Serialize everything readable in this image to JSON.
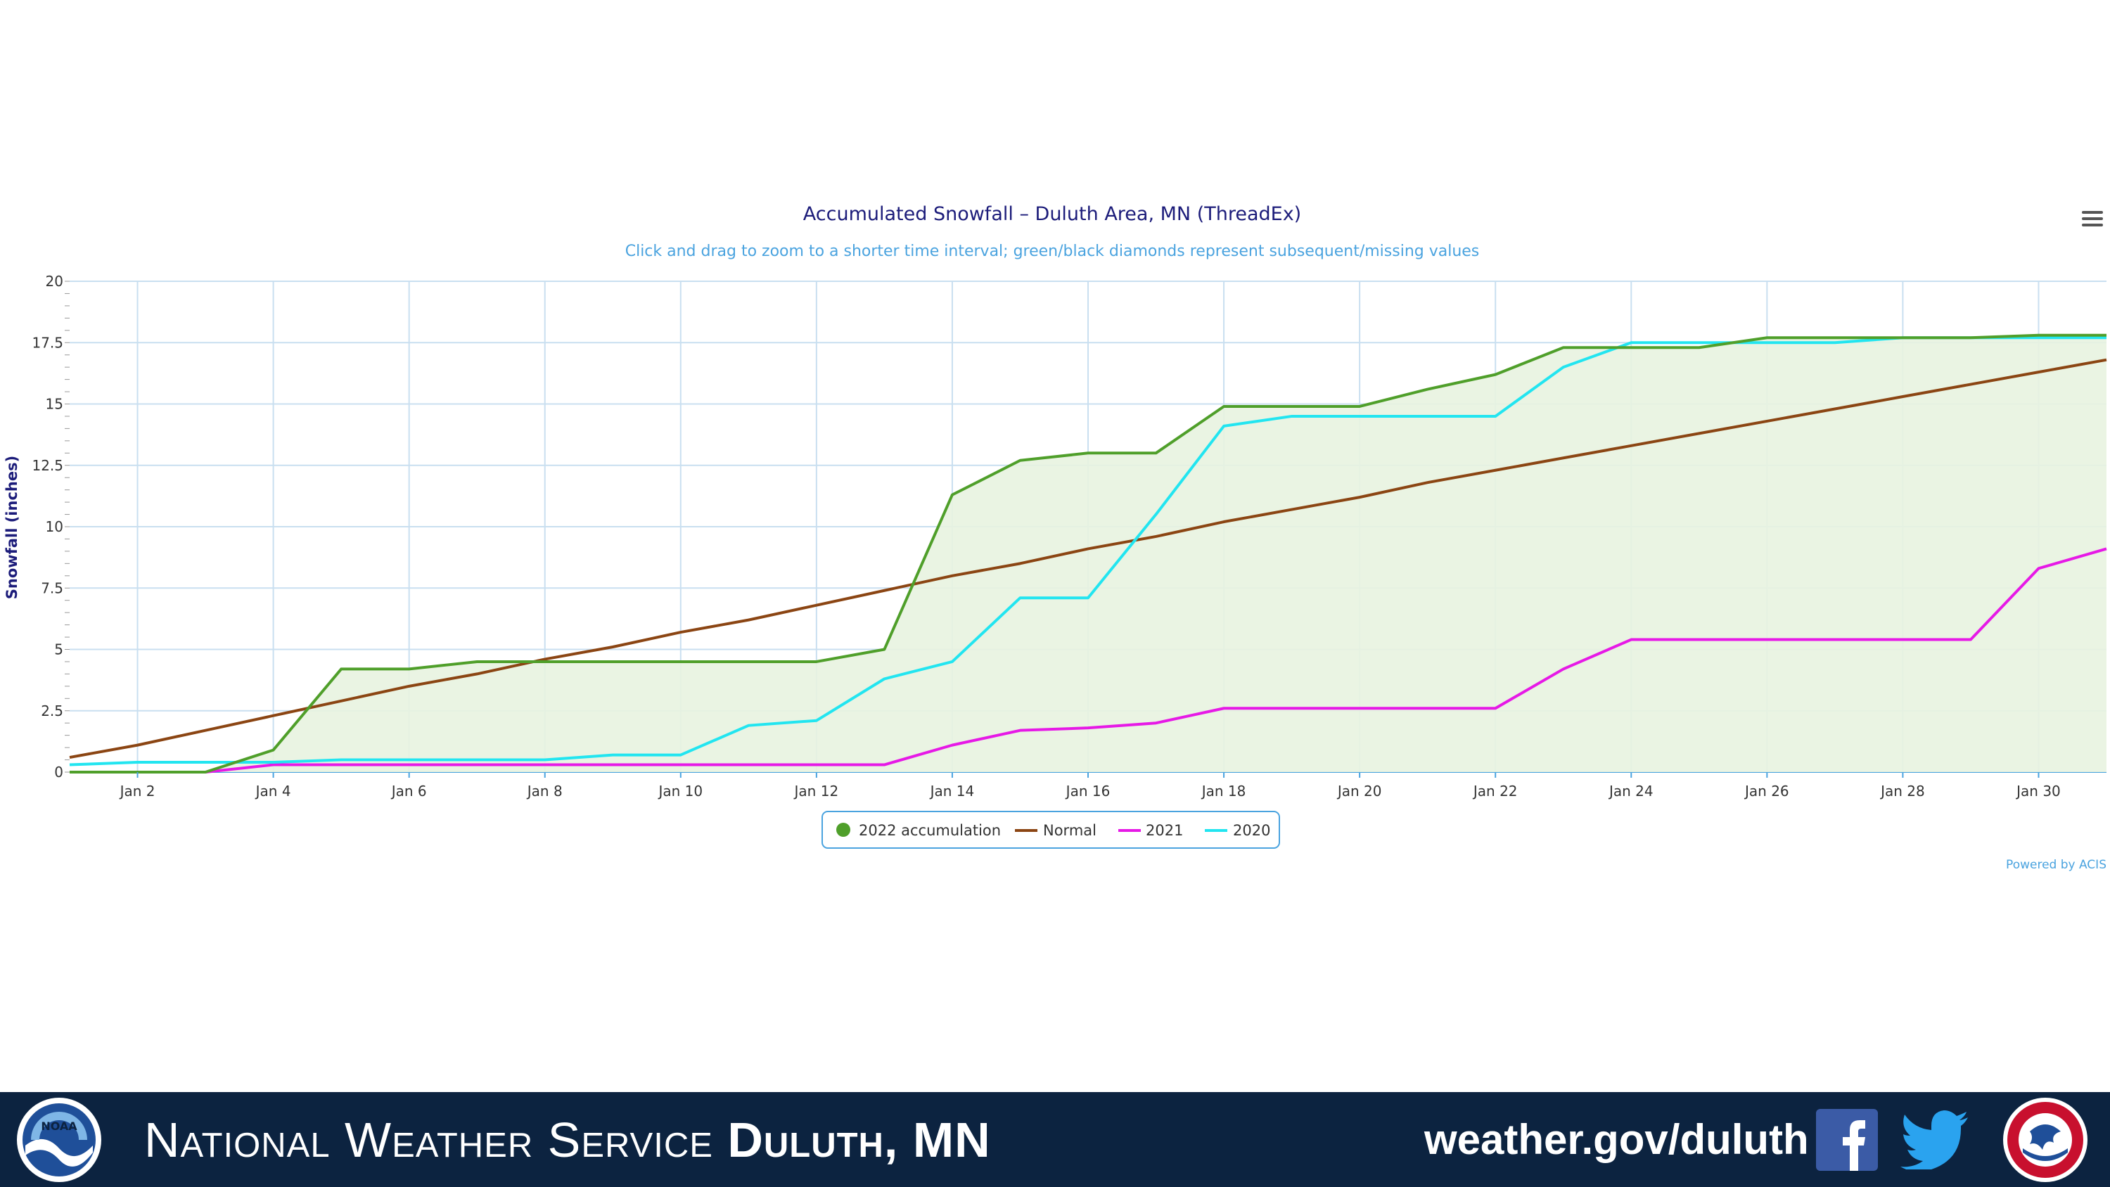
{
  "chart_data": {
    "type": "line",
    "title": "Accumulated Snowfall – Duluth Area, MN (ThreadEx)",
    "subtitle": "Click and drag to zoom to a shorter time interval; green/black diamonds represent subsequent/missing values",
    "ylabel": "Snowfall (inches)",
    "xlabel": "",
    "x": [
      "Jan 1",
      "Jan 2",
      "Jan 3",
      "Jan 4",
      "Jan 5",
      "Jan 6",
      "Jan 7",
      "Jan 8",
      "Jan 9",
      "Jan 10",
      "Jan 11",
      "Jan 12",
      "Jan 13",
      "Jan 14",
      "Jan 15",
      "Jan 16",
      "Jan 17",
      "Jan 18",
      "Jan 19",
      "Jan 20",
      "Jan 21",
      "Jan 22",
      "Jan 23",
      "Jan 24",
      "Jan 25",
      "Jan 26",
      "Jan 27",
      "Jan 28",
      "Jan 29",
      "Jan 30",
      "Jan 31"
    ],
    "x_tick_labels": [
      "Jan 2",
      "Jan 4",
      "Jan 6",
      "Jan 8",
      "Jan 10",
      "Jan 12",
      "Jan 14",
      "Jan 16",
      "Jan 18",
      "Jan 20",
      "Jan 22",
      "Jan 24",
      "Jan 26",
      "Jan 28",
      "Jan 30"
    ],
    "ylim": [
      0,
      20
    ],
    "y_ticks": [
      "0",
      "2.5",
      "5",
      "7.5",
      "10",
      "12.5",
      "15",
      "17.5",
      "20"
    ],
    "grid": true,
    "legend_position": "bottom-center",
    "series": [
      {
        "name": "2022 accumulation",
        "color": "#4f9f2a",
        "fill": "#e8f3e0",
        "values": [
          0,
          0,
          0,
          0.9,
          4.2,
          4.2,
          4.5,
          4.5,
          4.5,
          4.5,
          4.5,
          4.5,
          5.0,
          11.3,
          12.7,
          13.0,
          13.0,
          14.9,
          14.9,
          14.9,
          15.6,
          16.2,
          17.3,
          17.3,
          17.3,
          17.7,
          17.7,
          17.7,
          17.7,
          17.8,
          17.8
        ]
      },
      {
        "name": "Normal",
        "color": "#8b4513",
        "values": [
          0.6,
          1.1,
          1.7,
          2.3,
          2.9,
          3.5,
          4.0,
          4.6,
          5.1,
          5.7,
          6.2,
          6.8,
          7.4,
          8.0,
          8.5,
          9.1,
          9.6,
          10.2,
          10.7,
          11.2,
          11.8,
          12.3,
          12.8,
          13.3,
          13.8,
          14.3,
          14.8,
          15.3,
          15.8,
          16.3,
          16.8
        ]
      },
      {
        "name": "2021",
        "color": "#e619e6",
        "values": [
          0,
          0,
          0,
          0.3,
          0.3,
          0.3,
          0.3,
          0.3,
          0.3,
          0.3,
          0.3,
          0.3,
          0.3,
          1.1,
          1.7,
          1.8,
          2.0,
          2.6,
          2.6,
          2.6,
          2.6,
          2.6,
          4.2,
          5.4,
          5.4,
          5.4,
          5.4,
          5.4,
          5.4,
          8.3,
          9.1
        ]
      },
      {
        "name": "2020",
        "color": "#22e5f0",
        "values": [
          0.3,
          0.4,
          0.4,
          0.4,
          0.5,
          0.5,
          0.5,
          0.5,
          0.7,
          0.7,
          1.9,
          2.1,
          3.8,
          4.5,
          7.1,
          7.1,
          10.5,
          14.1,
          14.5,
          14.5,
          14.5,
          14.5,
          16.5,
          17.5,
          17.5,
          17.5,
          17.5,
          17.7,
          17.7,
          17.7,
          17.7
        ]
      }
    ],
    "credit": "Powered by ACIS"
  },
  "footer": {
    "title_plain": "National Weather Service",
    "title_bold": "Duluth, MN",
    "url": "weather.gov/duluth",
    "background": "#0c2340"
  },
  "icons": [
    "noaa-logo",
    "facebook-icon",
    "twitter-icon",
    "nws-logo",
    "menu-icon"
  ]
}
